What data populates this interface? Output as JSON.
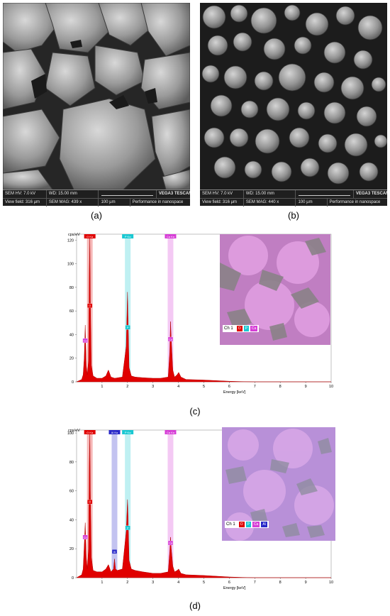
{
  "panels": {
    "a": {
      "caption": "(a)",
      "meta": {
        "hv": "SEM HV: 7.0 kV",
        "wd": "WD: 15.00 mm",
        "brand": "VEGA3 TESCAN",
        "view_field": "View field: 316 µm",
        "mag": "SEM MAG: 439 x",
        "scale": "100 µm",
        "slogan": "Performance in nanospace"
      }
    },
    "b": {
      "caption": "(b)",
      "meta": {
        "hv": "SEM HV: 7.0 kV",
        "wd": "WD: 15.00 mm",
        "brand": "VEGA3 TESCAN",
        "view_field": "View field: 316 µm",
        "mag": "SEM MAG: 440 x",
        "scale": "100 µm",
        "slogan": "Performance in nanospace"
      }
    },
    "c": {
      "caption": "(c)",
      "map_legend": {
        "label": "Ch 1",
        "elements": [
          "O",
          "P",
          "Ca"
        ]
      }
    },
    "d": {
      "caption": "(d)",
      "map_legend": {
        "label": "Ch 1",
        "elements": [
          "O",
          "P",
          "Ca",
          "Al"
        ]
      }
    }
  },
  "colors": {
    "spectrum": "#e00000",
    "O": "#e00000",
    "P": "#19c8d2",
    "Ca": "#d63cd6",
    "Al": "#2828c8"
  },
  "chart_data": [
    {
      "type": "area",
      "panel": "c",
      "ylabel": "cps/eV",
      "xlabel": "Energy [keV]",
      "xlim": [
        0,
        10
      ],
      "ylim": [
        0,
        125
      ],
      "xticks": [
        1,
        2,
        3,
        4,
        5,
        6,
        7,
        8,
        9,
        10
      ],
      "yticks": [
        0,
        20,
        40,
        60,
        80,
        100,
        120
      ],
      "element_lines": [
        {
          "label": "O",
          "x": 0.52,
          "band_label": "O Kα"
        },
        {
          "label": "P",
          "x": 2.01,
          "band_label": "P Kα"
        },
        {
          "label": "Ca",
          "x": 3.69,
          "band_label": "Ca Kα"
        },
        {
          "label": "Ca",
          "x": 0.34,
          "band_label": ""
        }
      ],
      "x": [
        0.0,
        0.2,
        0.26,
        0.3,
        0.34,
        0.38,
        0.42,
        0.47,
        0.5,
        0.52,
        0.54,
        0.58,
        0.65,
        0.8,
        1.0,
        1.15,
        1.25,
        1.35,
        1.5,
        1.8,
        1.95,
        2.0,
        2.02,
        2.06,
        2.15,
        2.3,
        2.6,
        3.0,
        3.3,
        3.6,
        3.66,
        3.69,
        3.72,
        3.78,
        3.85,
        3.95,
        4.01,
        4.1,
        4.3,
        5.0,
        6.0,
        6.5,
        7.0,
        10.0
      ],
      "y": [
        0,
        2,
        6,
        20,
        48,
        14,
        6,
        18,
        95,
        122,
        70,
        14,
        5,
        3,
        3,
        5,
        10,
        4,
        3,
        4,
        30,
        76,
        56,
        12,
        5,
        4,
        3.5,
        3,
        3,
        4,
        25,
        51,
        36,
        10,
        4,
        6,
        8,
        4,
        2,
        1.5,
        0.5,
        0.2,
        0,
        0
      ]
    },
    {
      "type": "area",
      "panel": "d",
      "ylabel": "cps/eV",
      "xlabel": "Energy [keV]",
      "xlim": [
        0,
        10
      ],
      "ylim": [
        0,
        102
      ],
      "xticks": [
        1,
        2,
        3,
        4,
        5,
        6,
        7,
        8,
        9,
        10
      ],
      "yticks": [
        0,
        20,
        40,
        60,
        80,
        100
      ],
      "element_lines": [
        {
          "label": "O",
          "x": 0.52,
          "band_label": "O Kα"
        },
        {
          "label": "Al",
          "x": 1.49,
          "band_label": "Al Kα"
        },
        {
          "label": "P",
          "x": 2.01,
          "band_label": "P Kα"
        },
        {
          "label": "Ca",
          "x": 3.69,
          "band_label": "Ca Kα"
        },
        {
          "label": "Ca",
          "x": 0.34,
          "band_label": ""
        }
      ],
      "x": [
        0.0,
        0.2,
        0.26,
        0.3,
        0.34,
        0.38,
        0.42,
        0.47,
        0.5,
        0.52,
        0.54,
        0.58,
        0.65,
        0.8,
        1.0,
        1.15,
        1.25,
        1.35,
        1.45,
        1.49,
        1.53,
        1.6,
        1.8,
        1.95,
        2.0,
        2.02,
        2.06,
        2.15,
        2.3,
        2.6,
        3.0,
        3.3,
        3.6,
        3.66,
        3.69,
        3.72,
        3.78,
        3.85,
        3.95,
        4.01,
        4.1,
        4.3,
        5.0,
        6.0,
        6.5,
        7.0,
        10.0
      ],
      "y": [
        0,
        2,
        6,
        22,
        38,
        14,
        6,
        20,
        80,
        99,
        60,
        14,
        5,
        4,
        4,
        6,
        9,
        4,
        6,
        13,
        6,
        5,
        6,
        32,
        54,
        44,
        12,
        6,
        5,
        4,
        3,
        3,
        4,
        18,
        28,
        20,
        8,
        4,
        5,
        6,
        3,
        2,
        1.5,
        0.5,
        0.2,
        0,
        0
      ]
    }
  ]
}
